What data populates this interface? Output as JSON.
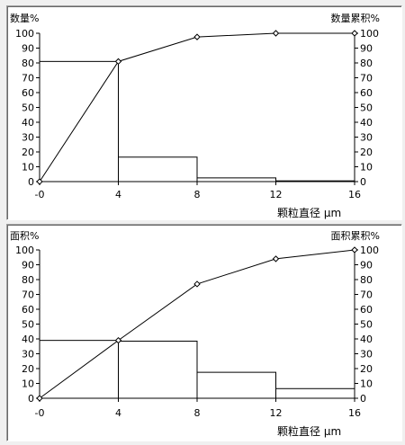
{
  "chart_data": [
    {
      "type": "bar",
      "ylabel_left": "数量%",
      "ylabel_right": "数量累积%",
      "xlabel": "颗粒直径 μm",
      "x_ticks": [
        "-0",
        "4",
        "8",
        "12",
        "16"
      ],
      "y_ticks": [
        "0",
        "10",
        "20",
        "30",
        "40",
        "50",
        "60",
        "70",
        "80",
        "90",
        "100"
      ],
      "xlim": [
        0,
        16
      ],
      "ylim": [
        0,
        100
      ],
      "bins": [
        [
          0,
          4
        ],
        [
          4,
          8
        ],
        [
          8,
          12
        ],
        [
          12,
          16
        ]
      ],
      "values": [
        81,
        16.5,
        2.5,
        0.5
      ],
      "cumulative": {
        "x": [
          0,
          4,
          8,
          12,
          16
        ],
        "y": [
          0,
          81,
          97.5,
          100,
          100
        ]
      }
    },
    {
      "type": "bar",
      "ylabel_left": "面积%",
      "ylabel_right": "面积累积%",
      "xlabel": "颗粒直径 μm",
      "x_ticks": [
        "-0",
        "4",
        "8",
        "12",
        "16"
      ],
      "y_ticks": [
        "0",
        "10",
        "20",
        "30",
        "40",
        "50",
        "60",
        "70",
        "80",
        "90",
        "100"
      ],
      "xlim": [
        0,
        16
      ],
      "ylim": [
        0,
        100
      ],
      "bins": [
        [
          0,
          4
        ],
        [
          4,
          8
        ],
        [
          8,
          12
        ],
        [
          12,
          16
        ]
      ],
      "values": [
        39,
        38.5,
        17.5,
        6.5
      ],
      "cumulative": {
        "x": [
          0,
          4,
          8,
          12,
          16
        ],
        "y": [
          0,
          39,
          77,
          94,
          100
        ]
      }
    }
  ]
}
